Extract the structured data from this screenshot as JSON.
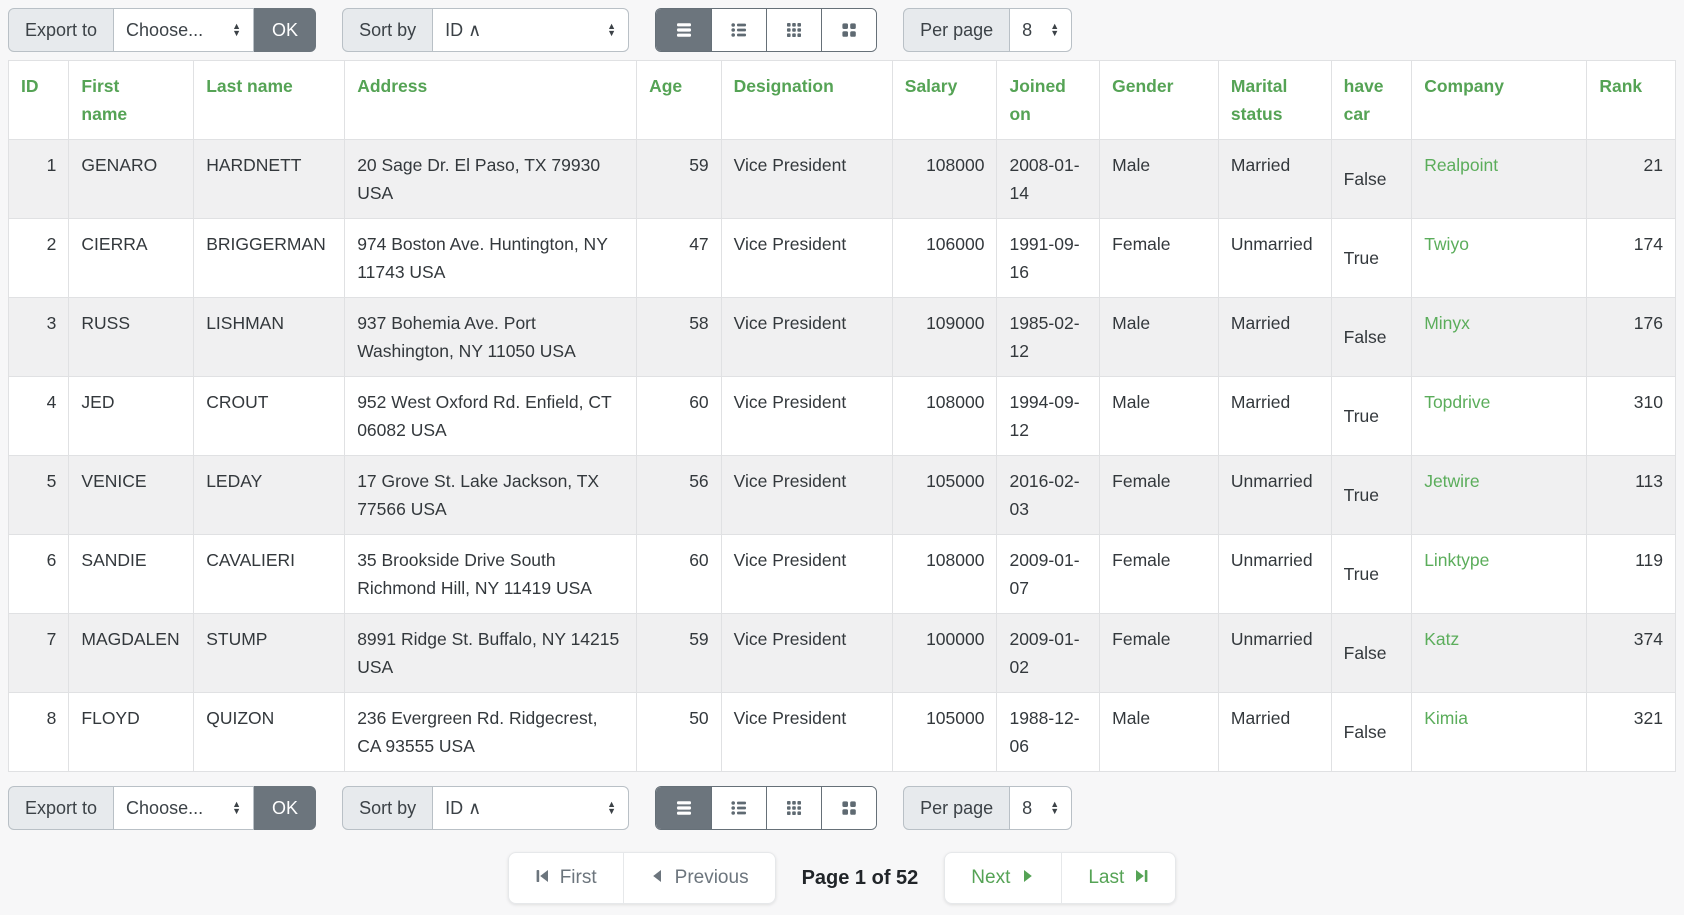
{
  "colors": {
    "header_green": "#55a355",
    "link_green": "#5bad5b",
    "active_button_gray": "#6c757d",
    "row_stripe": "#f0f0f1",
    "page_background": "#f7f7f8"
  },
  "toolbar": {
    "export_label": "Export to",
    "export_select_value": "Choose...",
    "ok_label": "OK",
    "sort_label": "Sort by",
    "sort_select_value": "ID ∧",
    "per_page_label": "Per page",
    "per_page_value": "8",
    "view_modes": [
      "rows-view",
      "list-view",
      "grid-small-view",
      "grid-large-view"
    ],
    "active_view_mode": "rows-view"
  },
  "table": {
    "columns": [
      {
        "key": "id",
        "label": "ID"
      },
      {
        "key": "first_name",
        "label": "First name"
      },
      {
        "key": "last_name",
        "label": "Last name"
      },
      {
        "key": "address",
        "label": "Address"
      },
      {
        "key": "age",
        "label": "Age"
      },
      {
        "key": "designation",
        "label": "Designation"
      },
      {
        "key": "salary",
        "label": "Salary"
      },
      {
        "key": "joined_on",
        "label": "Joined on"
      },
      {
        "key": "gender",
        "label": "Gender"
      },
      {
        "key": "marital_status",
        "label": "Marital status"
      },
      {
        "key": "have_car",
        "label": "have car"
      },
      {
        "key": "company",
        "label": "Company"
      },
      {
        "key": "rank",
        "label": "Rank"
      }
    ],
    "rows": [
      {
        "id": 1,
        "first_name": "GENARO",
        "last_name": "HARDNETT",
        "address": "20 Sage Dr. El Paso, TX 79930 USA",
        "age": 59,
        "designation": "Vice President",
        "salary": 108000,
        "joined_on": "2008-01-14",
        "gender": "Male",
        "marital_status": "Married",
        "have_car": "False",
        "company": "Realpoint",
        "rank": 21
      },
      {
        "id": 2,
        "first_name": "CIERRA",
        "last_name": "BRIGGERMAN",
        "address": "974 Boston Ave. Huntington, NY 11743 USA",
        "age": 47,
        "designation": "Vice President",
        "salary": 106000,
        "joined_on": "1991-09-16",
        "gender": "Female",
        "marital_status": "Unmarried",
        "have_car": "True",
        "company": "Twiyo",
        "rank": 174
      },
      {
        "id": 3,
        "first_name": "RUSS",
        "last_name": "LISHMAN",
        "address": "937 Bohemia Ave. Port Washington, NY 11050 USA",
        "age": 58,
        "designation": "Vice President",
        "salary": 109000,
        "joined_on": "1985-02-12",
        "gender": "Male",
        "marital_status": "Married",
        "have_car": "False",
        "company": "Minyx",
        "rank": 176
      },
      {
        "id": 4,
        "first_name": "JED",
        "last_name": "CROUT",
        "address": "952 West Oxford Rd. Enfield, CT 06082 USA",
        "age": 60,
        "designation": "Vice President",
        "salary": 108000,
        "joined_on": "1994-09-12",
        "gender": "Male",
        "marital_status": "Married",
        "have_car": "True",
        "company": "Topdrive",
        "rank": 310
      },
      {
        "id": 5,
        "first_name": "VENICE",
        "last_name": "LEDAY",
        "address": "17 Grove St. Lake Jackson, TX 77566 USA",
        "age": 56,
        "designation": "Vice President",
        "salary": 105000,
        "joined_on": "2016-02-03",
        "gender": "Female",
        "marital_status": "Unmarried",
        "have_car": "True",
        "company": "Jetwire",
        "rank": 113
      },
      {
        "id": 6,
        "first_name": "SANDIE",
        "last_name": "CAVALIERI",
        "address": "35 Brookside Drive South Richmond Hill, NY 11419 USA",
        "age": 60,
        "designation": "Vice President",
        "salary": 108000,
        "joined_on": "2009-01-07",
        "gender": "Female",
        "marital_status": "Unmarried",
        "have_car": "True",
        "company": "Linktype",
        "rank": 119
      },
      {
        "id": 7,
        "first_name": "MAGDALEN",
        "last_name": "STUMP",
        "address": "8991 Ridge St. Buffalo, NY 14215 USA",
        "age": 59,
        "designation": "Vice President",
        "salary": 100000,
        "joined_on": "2009-01-02",
        "gender": "Female",
        "marital_status": "Unmarried",
        "have_car": "False",
        "company": "Katz",
        "rank": 374
      },
      {
        "id": 8,
        "first_name": "FLOYD",
        "last_name": "QUIZON",
        "address": "236 Evergreen Rd. Ridgecrest, CA 93555 USA",
        "age": 50,
        "designation": "Vice President",
        "salary": 105000,
        "joined_on": "1988-12-06",
        "gender": "Male",
        "marital_status": "Married",
        "have_car": "False",
        "company": "Kimia",
        "rank": 321
      }
    ]
  },
  "pagination": {
    "first_label": "First",
    "previous_label": "Previous",
    "status": "Page 1 of 52",
    "next_label": "Next",
    "last_label": "Last"
  }
}
